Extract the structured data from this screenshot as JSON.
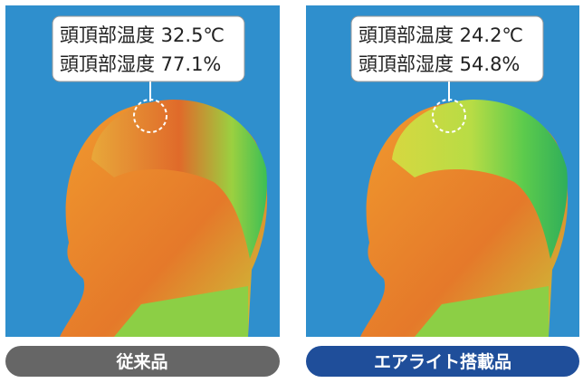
{
  "panels": [
    {
      "lines": [
        "頭頂部温度 32.5℃",
        "頭頂部湿度 77.1%"
      ],
      "label": "従来品"
    },
    {
      "lines": [
        "頭頂部温度 24.2℃",
        "頭頂部湿度 54.8%"
      ],
      "label": "エアライト搭載品"
    }
  ]
}
